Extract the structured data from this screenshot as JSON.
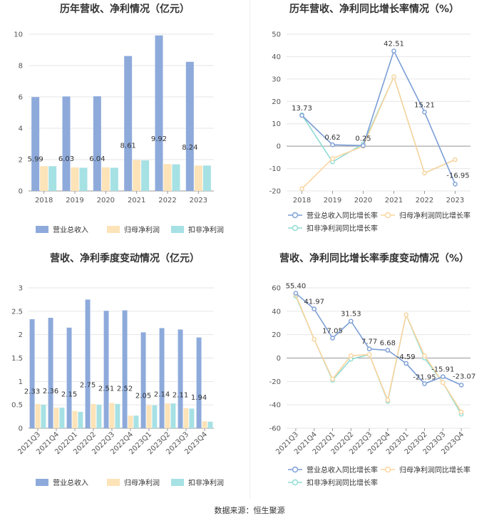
{
  "source": "数据来源：恒生聚源",
  "chart_data": [
    {
      "type": "bar",
      "title": "历年营收、净利情况（亿元）",
      "categories": [
        "2018",
        "2019",
        "2020",
        "2021",
        "2022",
        "2023"
      ],
      "ylim": [
        0,
        10
      ],
      "yticks": [
        0,
        2,
        4,
        6,
        8,
        10
      ],
      "grid": true,
      "legend_position": "bottom",
      "series": [
        {
          "name": "营业总收入",
          "color": "#8eaadb",
          "values": [
            5.99,
            6.03,
            6.04,
            8.61,
            9.92,
            8.24
          ],
          "labels": [
            "5.99",
            "6.03",
            "6.04",
            "8.61",
            "9.92",
            "8.24"
          ]
        },
        {
          "name": "归母净利润",
          "color": "#fde3b8",
          "values": [
            1.58,
            1.5,
            1.5,
            1.97,
            1.72,
            1.62
          ]
        },
        {
          "name": "扣非净利润",
          "color": "#a6e1e4",
          "values": [
            1.58,
            1.48,
            1.48,
            1.95,
            1.7,
            1.62
          ]
        }
      ]
    },
    {
      "type": "line",
      "title": "历年营收、净利同比增长率情况（%）",
      "categories": [
        "2018",
        "2019",
        "2020",
        "2021",
        "2022",
        "2023"
      ],
      "ylim": [
        -20,
        50
      ],
      "yticks": [
        -20,
        -10,
        0,
        10,
        20,
        30,
        40,
        50
      ],
      "grid": true,
      "legend_position": "bottom",
      "series": [
        {
          "name": "营业总收入同比增长率",
          "color": "#7b9ed6",
          "values": [
            13.73,
            0.62,
            0.25,
            42.51,
            15.21,
            -16.95
          ],
          "labels": [
            "13.73",
            "0.62",
            "0.25",
            "42.51",
            "15.21",
            "-16.95"
          ]
        },
        {
          "name": "归母净利润同比增长率",
          "color": "#fcd59e",
          "values": [
            -19.0,
            -5.5,
            0.0,
            31.0,
            -12.0,
            -6.0
          ]
        },
        {
          "name": "扣非净利润同比增长率",
          "color": "#8fdcd4",
          "values": [
            14.0,
            -7.0,
            1.0,
            31.0,
            -12.0,
            -6.0
          ]
        }
      ]
    },
    {
      "type": "bar",
      "title": "营收、净利季度变动情况（亿元）",
      "categories": [
        "2021Q3",
        "2021Q4",
        "2022Q1",
        "2022Q2",
        "2022Q3",
        "2022Q4",
        "2023Q1",
        "2023Q2",
        "2023Q3",
        "2023Q4"
      ],
      "ylim": [
        0,
        3
      ],
      "yticks": [
        "0",
        "0.5",
        "1",
        "1.5",
        "2",
        "2.5",
        "3"
      ],
      "grid": true,
      "legend_position": "bottom",
      "series": [
        {
          "name": "营业总收入",
          "color": "#8eaadb",
          "values": [
            2.33,
            2.36,
            2.15,
            2.75,
            2.51,
            2.52,
            2.05,
            2.14,
            2.11,
            1.94
          ],
          "labels": [
            "2.33",
            "2.36",
            "2.15",
            "2.75",
            "2.51",
            "2.52",
            "2.05",
            "2.14",
            "2.11",
            "1.94"
          ]
        },
        {
          "name": "归母净利润",
          "color": "#fde3b8",
          "values": [
            0.52,
            0.44,
            0.37,
            0.52,
            0.54,
            0.27,
            0.49,
            0.53,
            0.43,
            0.15
          ]
        },
        {
          "name": "扣非净利润",
          "color": "#a6e1e4",
          "values": [
            0.5,
            0.44,
            0.35,
            0.5,
            0.52,
            0.27,
            0.49,
            0.53,
            0.42,
            0.14
          ]
        }
      ]
    },
    {
      "type": "line",
      "title": "营收、净利同比增长率季度变动情况（%）",
      "categories": [
        "2021Q3",
        "2021Q4",
        "2022Q1",
        "2022Q2",
        "2022Q3",
        "2022Q4",
        "2023Q1",
        "2023Q2",
        "2023Q3",
        "2023Q4"
      ],
      "ylim": [
        -60,
        60
      ],
      "yticks": [
        -60,
        -40,
        -20,
        0,
        20,
        40,
        60
      ],
      "grid": true,
      "legend_position": "bottom",
      "series": [
        {
          "name": "营业总收入同比增长率",
          "color": "#7b9ed6",
          "values": [
            55.4,
            41.97,
            17.05,
            31.53,
            7.77,
            6.68,
            -4.59,
            -21.95,
            -15.91,
            -23.07
          ],
          "labels": [
            "55.40",
            "41.97",
            "17.05",
            "31.53",
            "7.77",
            "6.68",
            "-4.59",
            "-21.95",
            "-15.91",
            "-23.07"
          ]
        },
        {
          "name": "归母净利润同比增长率",
          "color": "#fcd59e",
          "values": [
            54.0,
            16.0,
            -18.0,
            2.0,
            3.0,
            -36.0,
            37.0,
            2.0,
            -21.0,
            -46.0
          ]
        },
        {
          "name": "扣非净利润同比增长率",
          "color": "#8fdcd4",
          "values": [
            53.0,
            16.0,
            -19.0,
            -1.0,
            3.0,
            -37.0,
            37.0,
            0.0,
            -21.0,
            -48.0
          ]
        }
      ]
    }
  ]
}
